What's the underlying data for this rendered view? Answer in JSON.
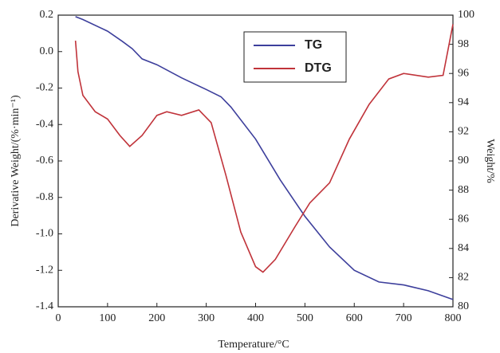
{
  "chart_data": {
    "type": "line",
    "xlabel": "Temperature/°C",
    "ylabel": "Derivative Weight/(%·min⁻¹)",
    "y2label": "Weight/%",
    "xlim": [
      0,
      800
    ],
    "xticks": [
      0,
      100,
      200,
      300,
      400,
      500,
      600,
      700,
      800
    ],
    "ylim": [
      -1.4,
      0.2
    ],
    "yticks": [
      -1.4,
      -1.2,
      {
        "value": -1.0,
        "label": "-1.0"
      },
      -0.8,
      -0.6,
      -0.4,
      -0.2,
      {
        "value": 0,
        "label": "0.0"
      },
      0.2
    ],
    "y2lim": [
      80,
      100
    ],
    "y2ticks": [
      80,
      82,
      84,
      86,
      88,
      90,
      92,
      94,
      96,
      98,
      100
    ],
    "legend": "upper center",
    "series": [
      {
        "name": "TG",
        "color": "#3d3f9c",
        "axis": "y2",
        "x": [
          35,
          50,
          100,
          130,
          150,
          170,
          200,
          250,
          300,
          330,
          350,
          400,
          450,
          500,
          550,
          600,
          650,
          700,
          750,
          800
        ],
        "values": [
          99.9,
          99.7,
          98.9,
          98.2,
          97.7,
          97.0,
          96.6,
          95.7,
          94.9,
          94.4,
          93.7,
          91.5,
          88.7,
          86.2,
          84.1,
          82.5,
          81.7,
          81.5,
          81.1,
          80.5
        ]
      },
      {
        "name": "DTG",
        "color": "#c0333a",
        "x": [
          35,
          40,
          50,
          75,
          100,
          125,
          145,
          170,
          200,
          220,
          250,
          285,
          310,
          340,
          370,
          400,
          415,
          440,
          480,
          510,
          550,
          590,
          630,
          670,
          700,
          750,
          780,
          800
        ],
        "values": [
          0.06,
          -0.11,
          -0.24,
          -0.33,
          -0.37,
          -0.46,
          -0.52,
          -0.46,
          -0.35,
          -0.33,
          -0.35,
          -0.32,
          -0.39,
          -0.68,
          -0.99,
          -1.18,
          -1.21,
          -1.14,
          -0.96,
          -0.83,
          -0.72,
          -0.48,
          -0.29,
          -0.15,
          -0.12,
          -0.14,
          -0.13,
          0.15
        ]
      }
    ]
  }
}
